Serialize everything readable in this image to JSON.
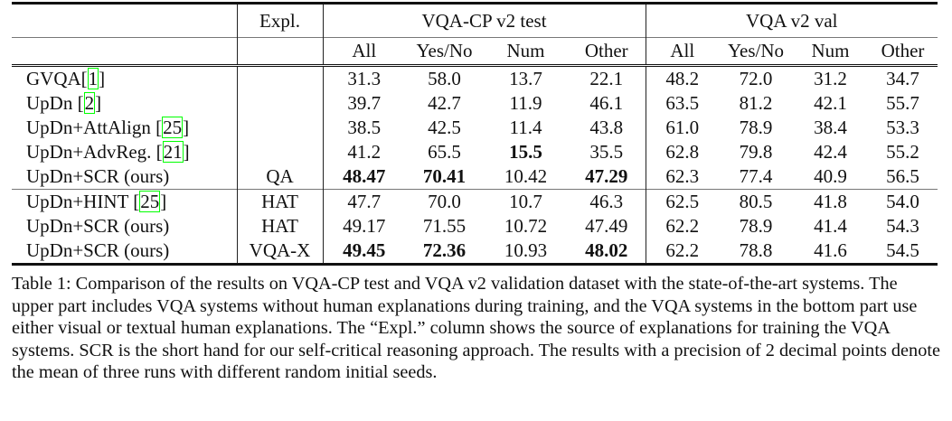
{
  "table": {
    "header_row1": {
      "expl": "Expl.",
      "group1": "VQA-CP v2 test",
      "group2": "VQA v2 val"
    },
    "header_row2": [
      "All",
      "Yes/No",
      "Num",
      "Other",
      "All",
      "Yes/No",
      "Num",
      "Other"
    ],
    "rows": [
      {
        "name": "GVQA",
        "cite": "1",
        "expl": "",
        "cells": [
          {
            "v": "31.3"
          },
          {
            "v": "58.0"
          },
          {
            "v": "13.7"
          },
          {
            "v": "22.1"
          },
          {
            "v": "48.2"
          },
          {
            "v": "72.0"
          },
          {
            "v": "31.2"
          },
          {
            "v": "34.7"
          }
        ]
      },
      {
        "name": "UpDn ",
        "cite": "2",
        "expl": "",
        "cells": [
          {
            "v": "39.7"
          },
          {
            "v": "42.7"
          },
          {
            "v": "11.9"
          },
          {
            "v": "46.1"
          },
          {
            "v": "63.5"
          },
          {
            "v": "81.2"
          },
          {
            "v": "42.1"
          },
          {
            "v": "55.7"
          }
        ]
      },
      {
        "name": "UpDn+AttAlign ",
        "cite": "25",
        "expl": "",
        "cells": [
          {
            "v": "38.5"
          },
          {
            "v": "42.5"
          },
          {
            "v": "11.4"
          },
          {
            "v": "43.8"
          },
          {
            "v": "61.0"
          },
          {
            "v": "78.9"
          },
          {
            "v": "38.4"
          },
          {
            "v": "53.3"
          }
        ]
      },
      {
        "name": "UpDn+AdvReg. ",
        "cite": "21",
        "expl": "",
        "cells": [
          {
            "v": "41.2"
          },
          {
            "v": "65.5"
          },
          {
            "v": "15.5",
            "b": true
          },
          {
            "v": "35.5"
          },
          {
            "v": "62.8"
          },
          {
            "v": "79.8"
          },
          {
            "v": "42.4"
          },
          {
            "v": "55.2"
          }
        ]
      },
      {
        "name": "UpDn+SCR (ours)",
        "cite": "",
        "expl": "QA",
        "cells": [
          {
            "v": "48.47",
            "b": true
          },
          {
            "v": "70.41",
            "b": true
          },
          {
            "v": "10.42"
          },
          {
            "v": "47.29",
            "b": true
          },
          {
            "v": "62.3"
          },
          {
            "v": "77.4"
          },
          {
            "v": "40.9"
          },
          {
            "v": "56.5"
          }
        ]
      },
      {
        "name": "UpDn+HINT ",
        "cite": "25",
        "expl": "HAT",
        "sep": true,
        "cells": [
          {
            "v": "47.7"
          },
          {
            "v": "70.0"
          },
          {
            "v": "10.7"
          },
          {
            "v": "46.3"
          },
          {
            "v": "62.5"
          },
          {
            "v": "80.5"
          },
          {
            "v": "41.8"
          },
          {
            "v": "54.0"
          }
        ]
      },
      {
        "name": "UpDn+SCR (ours)",
        "cite": "",
        "expl": "HAT",
        "cells": [
          {
            "v": "49.17"
          },
          {
            "v": "71.55"
          },
          {
            "v": "10.72"
          },
          {
            "v": "47.49"
          },
          {
            "v": "62.2"
          },
          {
            "v": "78.9"
          },
          {
            "v": "41.4"
          },
          {
            "v": "54.3"
          }
        ]
      },
      {
        "name": "UpDn+SCR (ours)",
        "cite": "",
        "expl": "VQA-X",
        "last": true,
        "cells": [
          {
            "v": "49.45",
            "b": true
          },
          {
            "v": "72.36",
            "b": true
          },
          {
            "v": "10.93"
          },
          {
            "v": "48.02",
            "b": true
          },
          {
            "v": "62.2"
          },
          {
            "v": "78.8"
          },
          {
            "v": "41.6"
          },
          {
            "v": "54.5"
          }
        ]
      }
    ]
  },
  "caption": "Table 1: Comparison of the results on VQA-CP test and VQA v2 validation dataset with the state-of-the-art systems. The upper part includes VQA systems without human explanations during training, and the VQA systems in the bottom part use either visual or textual human explanations. The “Expl.” column shows the source of explanations for training the VQA systems. SCR is the short hand for our self-critical reasoning approach. The results with a precision of 2 decimal points denote the mean of three runs with different random initial seeds."
}
